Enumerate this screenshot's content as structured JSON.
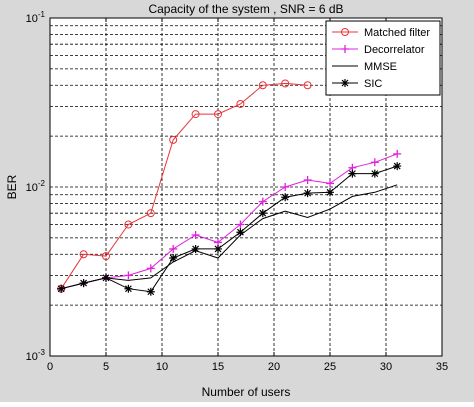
{
  "chart_data": {
    "type": "line",
    "title": "Capacity of the system , SNR = 6 dB",
    "xlabel": "Number of users",
    "ylabel": "BER",
    "xlim": [
      0,
      35
    ],
    "ylim": [
      0.001,
      0.1
    ],
    "yscale": "log",
    "x_ticks": [
      0,
      5,
      10,
      15,
      20,
      25,
      30,
      35
    ],
    "y_ticks": [
      {
        "value": 0.001,
        "base": "10",
        "exp": "-3"
      },
      {
        "value": 0.01,
        "base": "10",
        "exp": "-2"
      },
      {
        "value": 0.1,
        "base": "10",
        "exp": "-1"
      }
    ],
    "grid": true,
    "legend_position": "top-right",
    "series": [
      {
        "name": "Matched filter",
        "color": "#e8333a",
        "marker": "circle",
        "x": [
          1,
          3,
          5,
          7,
          9,
          11,
          13,
          15,
          17,
          19,
          21,
          23
        ],
        "y": [
          0.0025,
          0.004,
          0.0039,
          0.006,
          0.007,
          0.019,
          0.027,
          0.027,
          0.031,
          0.04,
          0.041,
          0.04
        ]
      },
      {
        "name": "Decorrelator",
        "color": "#e020e0",
        "marker": "plus",
        "x": [
          1,
          3,
          5,
          7,
          9,
          11,
          13,
          15,
          17,
          19,
          21,
          23,
          25,
          27,
          29,
          31
        ],
        "y": [
          0.0025,
          0.0027,
          0.0029,
          0.003,
          0.0033,
          0.0043,
          0.0052,
          0.0047,
          0.006,
          0.0082,
          0.01,
          0.011,
          0.0105,
          0.013,
          0.014,
          0.0157
        ]
      },
      {
        "name": "MMSE",
        "color": "#000000",
        "marker": "none",
        "x": [
          1,
          3,
          5,
          7,
          9,
          11,
          13,
          15,
          17,
          19,
          21,
          23,
          25,
          27,
          29,
          31
        ],
        "y": [
          0.0025,
          0.0027,
          0.0029,
          0.0028,
          0.0029,
          0.0036,
          0.0042,
          0.0038,
          0.0052,
          0.0065,
          0.0072,
          0.0066,
          0.0074,
          0.0088,
          0.0093,
          0.0103
        ]
      },
      {
        "name": "SIC",
        "color": "#000000",
        "marker": "star",
        "x": [
          1,
          3,
          5,
          7,
          9,
          11,
          13,
          15,
          17,
          19,
          21,
          23,
          25,
          27,
          29,
          31
        ],
        "y": [
          0.0025,
          0.0027,
          0.0029,
          0.0025,
          0.0024,
          0.0038,
          0.0043,
          0.0043,
          0.0054,
          0.007,
          0.0087,
          0.0092,
          0.0093,
          0.012,
          0.012,
          0.0133
        ]
      }
    ]
  }
}
